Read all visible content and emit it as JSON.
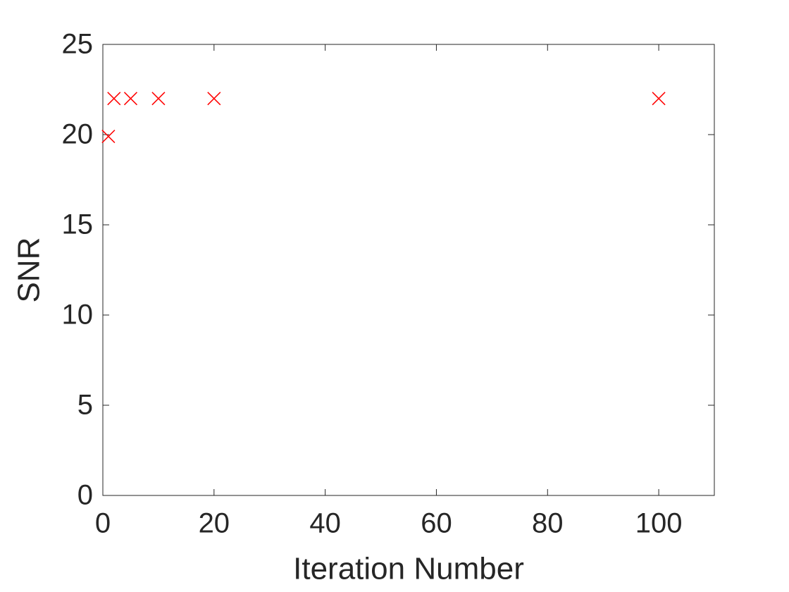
{
  "chart_data": {
    "type": "scatter",
    "x_label": "Iteration Number",
    "y_label": "SNR",
    "x": [
      1,
      2,
      5,
      10,
      20,
      100
    ],
    "values": [
      19.9,
      22,
      22,
      22,
      22,
      22
    ],
    "color": "#ff0000",
    "marker": "x",
    "xlim": [
      0,
      110
    ],
    "ylim": [
      0,
      25
    ],
    "xticks": [
      0,
      20,
      40,
      60,
      80,
      100
    ],
    "yticks": [
      0,
      5,
      10,
      15,
      20,
      25
    ],
    "grid": false
  }
}
